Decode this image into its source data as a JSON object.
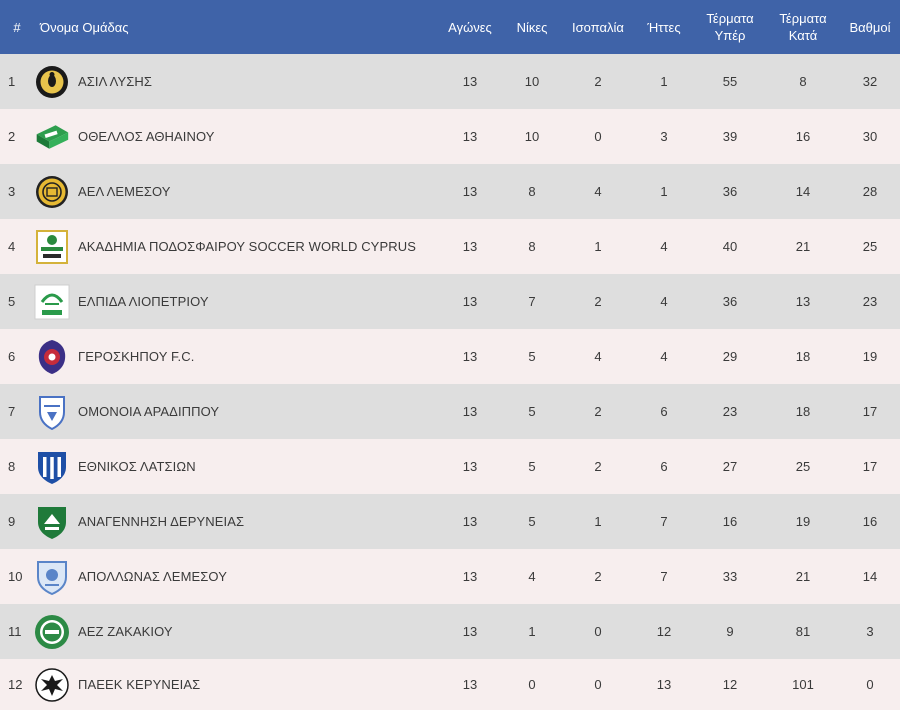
{
  "table": {
    "headers": {
      "pos": "#",
      "name": "Όνομα Ομάδας",
      "played": "Αγώνες",
      "wins": "Νίκες",
      "draws": "Ισοπαλία",
      "losses": "Ήττες",
      "gf": "Τέρματα Υπέρ",
      "ga": "Τέρματα Κατά",
      "pts": "Βαθμοί"
    },
    "rows": [
      {
        "pos": "1",
        "name": "ΑΣΙΛ ΛΥΣΗΣ",
        "logo": "asil-lysis-crest-icon",
        "played": "13",
        "wins": "10",
        "draws": "2",
        "losses": "1",
        "gf": "55",
        "ga": "8",
        "pts": "32"
      },
      {
        "pos": "2",
        "name": "ΟΘΕΛΛΟΣ ΑΘΗΑΙΝΟΥ",
        "logo": "othellos-crest-icon",
        "played": "13",
        "wins": "10",
        "draws": "0",
        "losses": "3",
        "gf": "39",
        "ga": "16",
        "pts": "30"
      },
      {
        "pos": "3",
        "name": "ΑΕΛ ΛΕΜΕΣΟΥ",
        "logo": "ael-crest-icon",
        "played": "13",
        "wins": "8",
        "draws": "4",
        "losses": "1",
        "gf": "36",
        "ga": "14",
        "pts": "28"
      },
      {
        "pos": "4",
        "name": "ΑΚΑΔΗΜΙΑ ΠΟΔΟΣΦΑΙΡΟΥ SOCCER WORLD CYPRUS",
        "logo": "soccer-world-crest-icon",
        "played": "13",
        "wins": "8",
        "draws": "1",
        "losses": "4",
        "gf": "40",
        "ga": "21",
        "pts": "25"
      },
      {
        "pos": "5",
        "name": "ΕΛΠΙΔΑ ΛΙΟΠΕΤΡΙΟΥ",
        "logo": "elpida-crest-icon",
        "played": "13",
        "wins": "7",
        "draws": "2",
        "losses": "4",
        "gf": "36",
        "ga": "13",
        "pts": "23"
      },
      {
        "pos": "6",
        "name": "ΓΕΡΟΣΚΗΠΟΥ F.C.",
        "logo": "geroskipou-crest-icon",
        "played": "13",
        "wins": "5",
        "draws": "4",
        "losses": "4",
        "gf": "29",
        "ga": "18",
        "pts": "19"
      },
      {
        "pos": "7",
        "name": "ΟΜΟΝΟΙΑ ΑΡΑΔΙΠΠΟΥ",
        "logo": "omonoia-aradippou-crest-icon",
        "played": "13",
        "wins": "5",
        "draws": "2",
        "losses": "6",
        "gf": "23",
        "ga": "18",
        "pts": "17"
      },
      {
        "pos": "8",
        "name": "ΕΘΝΙΚΟΣ ΛΑΤΣΙΩΝ",
        "logo": "ethnikos-latsion-crest-icon",
        "played": "13",
        "wins": "5",
        "draws": "2",
        "losses": "6",
        "gf": "27",
        "ga": "25",
        "pts": "17"
      },
      {
        "pos": "9",
        "name": "ΑΝΑΓΕΝΝΗΣΗ ΔΕΡΥΝΕΙΑΣ",
        "logo": "anagennisi-crest-icon",
        "played": "13",
        "wins": "5",
        "draws": "1",
        "losses": "7",
        "gf": "16",
        "ga": "19",
        "pts": "16"
      },
      {
        "pos": "10",
        "name": "ΑΠΟΛΛΩΝΑΣ ΛΕΜΕΣΟΥ",
        "logo": "apollon-crest-icon",
        "played": "13",
        "wins": "4",
        "draws": "2",
        "losses": "7",
        "gf": "33",
        "ga": "21",
        "pts": "14"
      },
      {
        "pos": "11",
        "name": "ΑΕΖ ΖΑΚΑΚΙΟΥ",
        "logo": "aez-crest-icon",
        "played": "13",
        "wins": "1",
        "draws": "0",
        "losses": "12",
        "gf": "9",
        "ga": "81",
        "pts": "3"
      },
      {
        "pos": "12",
        "name": "ΠΑΕΕΚ ΚΕΡΥΝΕΙΑΣ",
        "logo": "paeek-crest-icon",
        "played": "13",
        "wins": "0",
        "draws": "0",
        "losses": "13",
        "gf": "12",
        "ga": "101",
        "pts": "0"
      }
    ]
  },
  "colors": {
    "header_bg": "#3f63a8",
    "row_odd": "#dedede",
    "row_even": "#f7eeee"
  }
}
